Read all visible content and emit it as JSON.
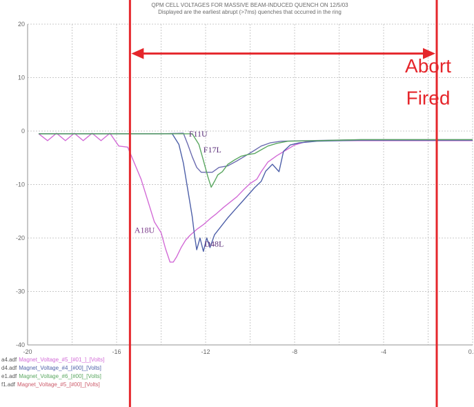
{
  "chart_data": {
    "type": "line",
    "title": "QPM CELL VOLTAGES FOR MASSIVE BEAM-INDUCED QUENCH ON 12/5/03",
    "subtitle": "Displayed are the earliest abrupt (>7ms) quenches that occurred in the ring",
    "xlabel": "",
    "ylabel": "",
    "xlim": [
      -20,
      0
    ],
    "ylim": [
      -40,
      20
    ],
    "x_ticks": [
      "-20",
      "-16",
      "-12",
      "-8",
      "-4",
      "0.3"
    ],
    "y_ticks": [
      "20",
      "10",
      "0",
      "-10",
      "-20",
      "-30",
      "-40"
    ],
    "grid": true,
    "series": [
      {
        "name": "A18U",
        "color": "#d26ad6",
        "points": [
          [
            -19.5,
            -0.5
          ],
          [
            -19.1,
            -1.8
          ],
          [
            -18.7,
            -0.4
          ],
          [
            -18.3,
            -1.8
          ],
          [
            -17.9,
            -0.4
          ],
          [
            -17.5,
            -1.8
          ],
          [
            -17.1,
            -0.4
          ],
          [
            -16.7,
            -1.8
          ],
          [
            -16.3,
            -0.4
          ],
          [
            -15.9,
            -2.8
          ],
          [
            -15.5,
            -3.0
          ],
          [
            -15.2,
            -6
          ],
          [
            -14.9,
            -9
          ],
          [
            -14.6,
            -13
          ],
          [
            -14.3,
            -17
          ],
          [
            -14.0,
            -19
          ],
          [
            -13.8,
            -22
          ],
          [
            -13.6,
            -24.5
          ],
          [
            -13.45,
            -24.5
          ],
          [
            -13.3,
            -23.5
          ],
          [
            -13.1,
            -21.8
          ],
          [
            -12.9,
            -20.4
          ],
          [
            -12.7,
            -19.5
          ],
          [
            -12.4,
            -18.4
          ],
          [
            -12.1,
            -17.5
          ],
          [
            -11.8,
            -16.4
          ],
          [
            -11.5,
            -15.4
          ],
          [
            -11.2,
            -14.3
          ],
          [
            -10.9,
            -13.3
          ],
          [
            -10.6,
            -12.3
          ],
          [
            -10.3,
            -11
          ],
          [
            -10.0,
            -9.8
          ],
          [
            -9.7,
            -9
          ],
          [
            -9.5,
            -7.6
          ],
          [
            -9.2,
            -5.8
          ],
          [
            -8.8,
            -4.6
          ],
          [
            -8.4,
            -3.6
          ],
          [
            -8.0,
            -2.6
          ],
          [
            -7.5,
            -2.0
          ],
          [
            -7.0,
            -1.8
          ],
          [
            -6.0,
            -1.8
          ],
          [
            -5.0,
            -1.8
          ],
          [
            -4.0,
            -1.8
          ],
          [
            -3.0,
            -1.8
          ],
          [
            -2.0,
            -1.8
          ],
          [
            -1.0,
            -1.8
          ],
          [
            0.0,
            -1.8
          ]
        ]
      },
      {
        "name": "D48L",
        "color": "#4d5fa8",
        "points": [
          [
            -19.5,
            -0.5
          ],
          [
            -17.0,
            -0.5
          ],
          [
            -15.0,
            -0.5
          ],
          [
            -13.5,
            -0.5
          ],
          [
            -13.2,
            -2.5
          ],
          [
            -13.0,
            -6
          ],
          [
            -12.8,
            -11
          ],
          [
            -12.6,
            -16
          ],
          [
            -12.5,
            -19.5
          ],
          [
            -12.4,
            -22.2
          ],
          [
            -12.25,
            -20
          ],
          [
            -12.1,
            -22.5
          ],
          [
            -11.95,
            -20
          ],
          [
            -11.8,
            -21.8
          ],
          [
            -11.6,
            -19.4
          ],
          [
            -11.3,
            -17.8
          ],
          [
            -11.0,
            -16.2
          ],
          [
            -10.7,
            -14.8
          ],
          [
            -10.4,
            -13.4
          ],
          [
            -10.1,
            -12
          ],
          [
            -9.8,
            -10.6
          ],
          [
            -9.5,
            -9.4
          ],
          [
            -9.3,
            -7.5
          ],
          [
            -9.0,
            -6.2
          ],
          [
            -8.7,
            -7.6
          ],
          [
            -8.5,
            -3.8
          ],
          [
            -8.2,
            -2.6
          ],
          [
            -7.8,
            -2.2
          ],
          [
            -7.0,
            -1.9
          ],
          [
            -5.0,
            -1.7
          ],
          [
            -3.0,
            -1.7
          ],
          [
            0.0,
            -1.7
          ]
        ]
      },
      {
        "name": "F11U",
        "color": "#6b6bb0",
        "points": [
          [
            -19.5,
            -0.5
          ],
          [
            -18.0,
            -0.5
          ],
          [
            -16.0,
            -0.5
          ],
          [
            -14.0,
            -0.5
          ],
          [
            -13.0,
            -0.4
          ],
          [
            -12.8,
            -2.5
          ],
          [
            -12.6,
            -4.8
          ],
          [
            -12.4,
            -6.8
          ],
          [
            -12.2,
            -7.7
          ],
          [
            -11.7,
            -7.7
          ],
          [
            -11.4,
            -6.8
          ],
          [
            -11.0,
            -6.5
          ],
          [
            -10.6,
            -5.6
          ],
          [
            -10.2,
            -4.6
          ],
          [
            -9.8,
            -3.6
          ],
          [
            -9.5,
            -2.8
          ],
          [
            -9.1,
            -2.2
          ],
          [
            -8.6,
            -1.9
          ],
          [
            -7.5,
            -1.8
          ],
          [
            -5.0,
            -1.6
          ],
          [
            -2.0,
            -1.6
          ],
          [
            0.0,
            -1.6
          ]
        ]
      },
      {
        "name": "F17L",
        "color": "#5aa760",
        "points": [
          [
            -19.5,
            -0.5
          ],
          [
            -16.0,
            -0.5
          ],
          [
            -12.6,
            -0.5
          ],
          [
            -12.3,
            -2.5
          ],
          [
            -12.1,
            -5.5
          ],
          [
            -11.9,
            -8.5
          ],
          [
            -11.75,
            -10.5
          ],
          [
            -11.6,
            -9.4
          ],
          [
            -11.45,
            -8.2
          ],
          [
            -11.25,
            -7.6
          ],
          [
            -11.0,
            -6.2
          ],
          [
            -10.7,
            -5.4
          ],
          [
            -10.4,
            -4.7
          ],
          [
            -10.1,
            -4.4
          ],
          [
            -9.8,
            -4.2
          ],
          [
            -9.5,
            -3.5
          ],
          [
            -9.2,
            -2.8
          ],
          [
            -8.8,
            -2.3
          ],
          [
            -8.3,
            -1.9
          ],
          [
            -7.0,
            -1.8
          ],
          [
            -5.0,
            -1.6
          ],
          [
            -2.0,
            -1.6
          ],
          [
            0.0,
            -1.6
          ]
        ]
      }
    ],
    "annotations": [
      {
        "text": "A18U",
        "x": -15.2,
        "y": -19.0
      },
      {
        "text": "D48L",
        "x": -12.05,
        "y": -21.6
      },
      {
        "text": "F11U",
        "x": -12.75,
        "y": -1.0
      },
      {
        "text": "F17L",
        "x": -12.1,
        "y": -4.0
      },
      {
        "text": "Abort",
        "x": -2.0,
        "y": 11.0
      },
      {
        "text": "Fired",
        "x": -2.0,
        "y": 5.0
      }
    ],
    "markers": {
      "start_line_x": -15.4,
      "abort_line_x": 0.0,
      "arrow_from_x": -15.4,
      "arrow_to_x": 0.0,
      "arrow_y": 14.5,
      "color": "#e5262b"
    },
    "legend": [
      {
        "file": "a4.adf",
        "label": "Magnet_Voltage_#5_[#01_]_[Volts]",
        "color": "#d26ad6"
      },
      {
        "file": "d4.adf",
        "label": "Magnet_Voltage_#4_[#00]_[Volts]",
        "color": "#4d5fa8"
      },
      {
        "file": "e1.adf",
        "label": "Magnet_Voltage_#6_[#00]_[Volts]",
        "color": "#5aa760"
      },
      {
        "file": "f1.adf",
        "label": "Magnet_Voltage_#5_[#00]_[Volts]",
        "color": "#cc5a6a"
      }
    ]
  }
}
